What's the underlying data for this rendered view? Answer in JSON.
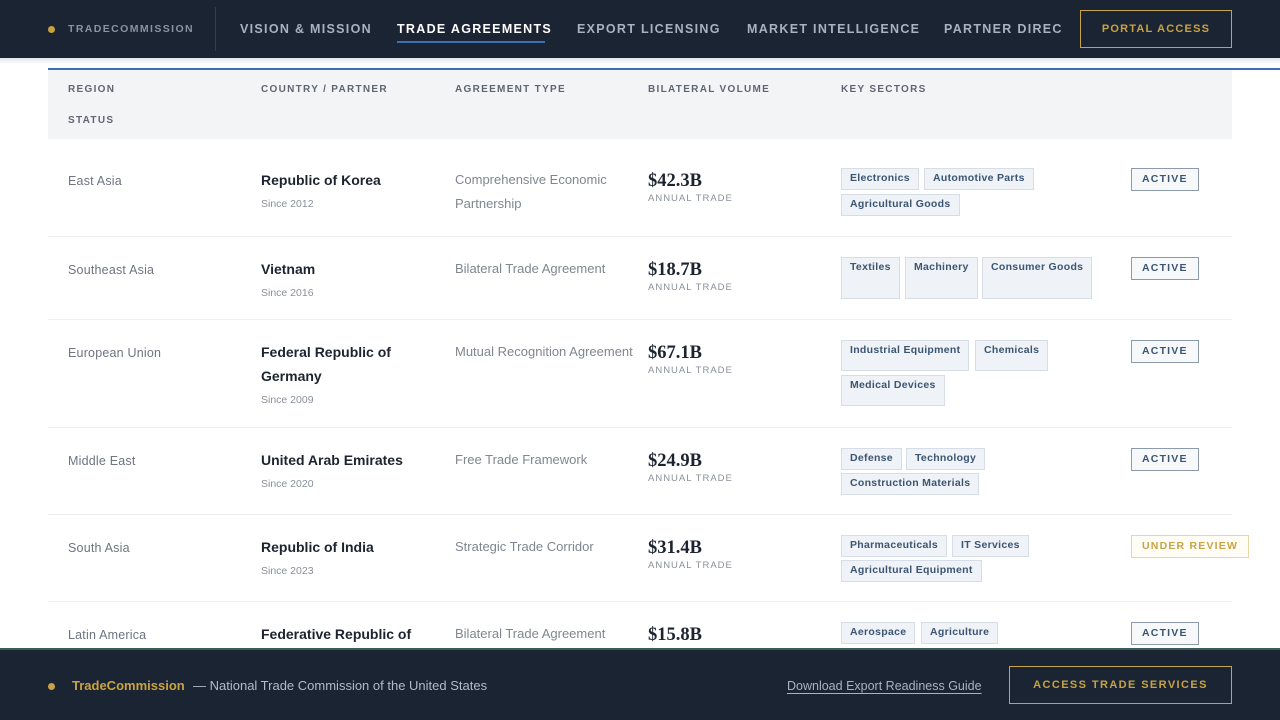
{
  "header": {
    "brand": "TRADECOMMISSION",
    "nav": [
      {
        "label": "VISION & MISSION",
        "active": false
      },
      {
        "label": "TRADE AGREEMENTS",
        "active": true
      },
      {
        "label": "EXPORT LICENSING",
        "active": false
      },
      {
        "label": "MARKET INTELLIGENCE",
        "active": false
      },
      {
        "label": "PARTNER DIREC",
        "active": false
      }
    ],
    "portal_button": "PORTAL ACCESS"
  },
  "table": {
    "columns": [
      "REGION",
      "COUNTRY / PARTNER",
      "AGREEMENT TYPE",
      "BILATERAL VOLUME",
      "KEY SECTORS",
      "STATUS"
    ],
    "rows": [
      {
        "region": "East Asia",
        "country": "Republic of Korea",
        "since": "Since 2012",
        "agreement": "Comprehensive Economic Partnership",
        "volume": "$42.3B",
        "volume_label": "ANNUAL TRADE",
        "sectors": [
          "Electronics",
          "Automotive Parts",
          "Agricultural Goods"
        ],
        "status": "ACTIVE"
      },
      {
        "region": "Southeast Asia",
        "country": "Vietnam",
        "since": "Since 2016",
        "agreement": "Bilateral Trade Agreement",
        "volume": "$18.7B",
        "volume_label": "ANNUAL TRADE",
        "sectors": [
          "Textiles",
          "Machinery",
          "Consumer Goods"
        ],
        "status": "ACTIVE"
      },
      {
        "region": "European Union",
        "country": "Federal Republic of Germany",
        "since": "Since 2009",
        "agreement": "Mutual Recognition Agreement",
        "volume": "$67.1B",
        "volume_label": "ANNUAL TRADE",
        "sectors": [
          "Industrial Equipment",
          "Chemicals",
          "Medical Devices"
        ],
        "status": "ACTIVE"
      },
      {
        "region": "Middle East",
        "country": "United Arab Emirates",
        "since": "Since 2020",
        "agreement": "Free Trade Framework",
        "volume": "$24.9B",
        "volume_label": "ANNUAL TRADE",
        "sectors": [
          "Defense",
          "Technology",
          "Construction Materials"
        ],
        "status": "ACTIVE"
      },
      {
        "region": "South Asia",
        "country": "Republic of India",
        "since": "Since 2023",
        "agreement": "Strategic Trade Corridor",
        "volume": "$31.4B",
        "volume_label": "ANNUAL TRADE",
        "sectors": [
          "Pharmaceuticals",
          "IT Services",
          "Agricultural Equipment"
        ],
        "status": "UNDER REVIEW"
      },
      {
        "region": "Latin America",
        "country": "Federative Republic of",
        "agreement": "Bilateral Trade Agreement",
        "volume": "$15.8B",
        "sectors": [
          "Aerospace",
          "Agriculture"
        ],
        "status": "ACTIVE"
      }
    ]
  },
  "footer": {
    "brand": "TradeCommission",
    "tagline": "— National Trade Commission of the United States",
    "link": "Download Export Readiness Guide",
    "button": "ACCESS TRADE SERVICES"
  },
  "colors": {
    "navy": "#1b2432",
    "gold": "#c9a343",
    "accent_blue": "#3d6fb3"
  }
}
